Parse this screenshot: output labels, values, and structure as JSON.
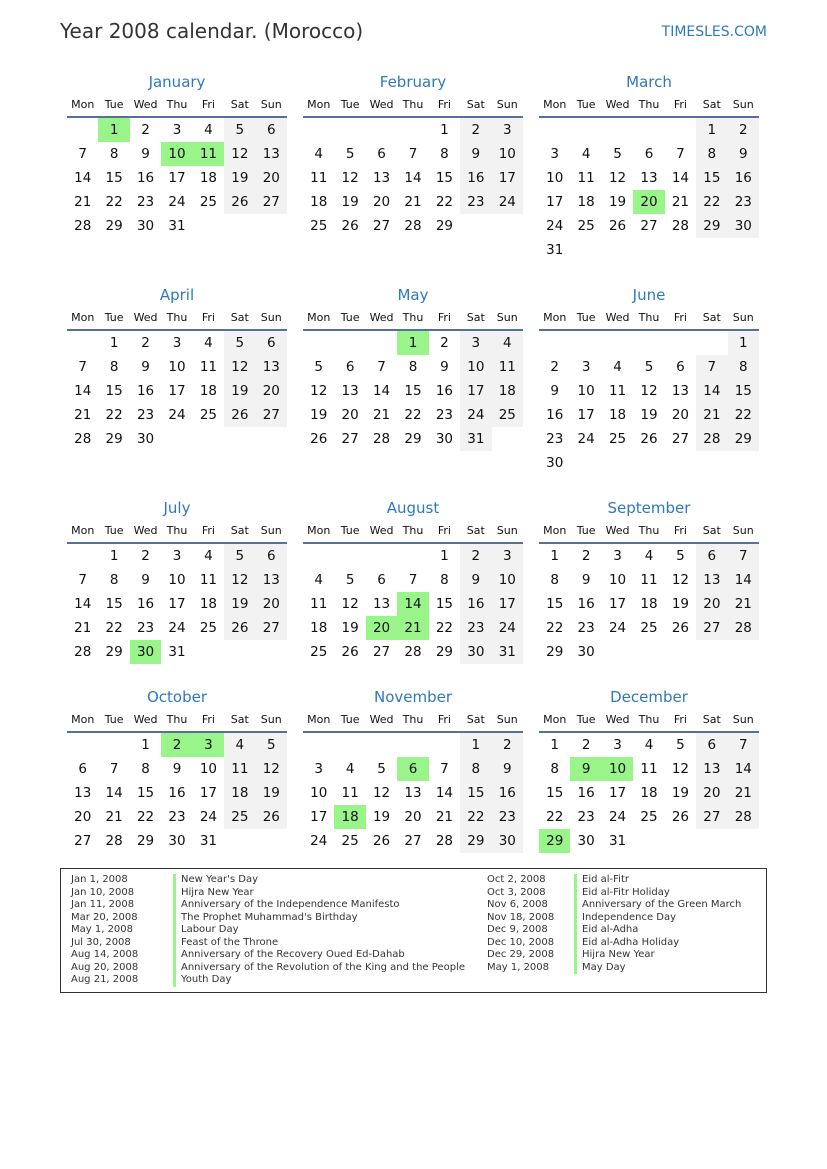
{
  "header": {
    "title": "Year 2008 calendar. (Morocco)",
    "brand": "TIMESLES.COM"
  },
  "weekdays": [
    "Mon",
    "Tue",
    "Wed",
    "Thu",
    "Fri",
    "Sat",
    "Sun"
  ],
  "colors": {
    "accent": "#2f78be",
    "holiday": "#99f58a",
    "weekend": "#f2f2f2"
  },
  "months": [
    {
      "name": "January",
      "first_weekday": "Tue",
      "days": 31,
      "holidays": [
        1,
        10,
        11
      ]
    },
    {
      "name": "February",
      "first_weekday": "Fri",
      "days": 29,
      "holidays": []
    },
    {
      "name": "March",
      "first_weekday": "Sat",
      "days": 31,
      "holidays": [
        20
      ]
    },
    {
      "name": "April",
      "first_weekday": "Tue",
      "days": 30,
      "holidays": []
    },
    {
      "name": "May",
      "first_weekday": "Thu",
      "days": 31,
      "holidays": [
        1
      ]
    },
    {
      "name": "June",
      "first_weekday": "Sun",
      "days": 30,
      "holidays": []
    },
    {
      "name": "July",
      "first_weekday": "Tue",
      "days": 31,
      "holidays": [
        30
      ]
    },
    {
      "name": "August",
      "first_weekday": "Fri",
      "days": 31,
      "holidays": [
        14,
        20,
        21
      ]
    },
    {
      "name": "September",
      "first_weekday": "Mon",
      "days": 30,
      "holidays": []
    },
    {
      "name": "October",
      "first_weekday": "Wed",
      "days": 31,
      "holidays": [
        2,
        3
      ]
    },
    {
      "name": "November",
      "first_weekday": "Sat",
      "days": 30,
      "holidays": [
        6,
        18
      ]
    },
    {
      "name": "December",
      "first_weekday": "Mon",
      "days": 31,
      "holidays": [
        9,
        10,
        29
      ]
    }
  ],
  "legend": {
    "left": [
      {
        "date": "Jan 1, 2008",
        "name": "New Year's Day"
      },
      {
        "date": "Jan 10, 2008",
        "name": "Hijra New Year"
      },
      {
        "date": "Jan 11, 2008",
        "name": "Anniversary of the Independence Manifesto"
      },
      {
        "date": "Mar 20, 2008",
        "name": "The Prophet Muhammad's Birthday"
      },
      {
        "date": "May 1, 2008",
        "name": "Labour Day"
      },
      {
        "date": "Jul 30, 2008",
        "name": "Feast of the Throne"
      },
      {
        "date": "Aug 14, 2008",
        "name": "Anniversary of the Recovery Oued Ed-Dahab"
      },
      {
        "date": "Aug 20, 2008",
        "name": "Anniversary of the Revolution of the King and the People"
      },
      {
        "date": "Aug 21, 2008",
        "name": "Youth Day"
      }
    ],
    "right": [
      {
        "date": "Oct 2, 2008",
        "name": "Eid al-Fitr"
      },
      {
        "date": "Oct 3, 2008",
        "name": "Eid al-Fitr Holiday"
      },
      {
        "date": "Nov 6, 2008",
        "name": "Anniversary of the Green March"
      },
      {
        "date": "Nov 18, 2008",
        "name": "Independence Day"
      },
      {
        "date": "Dec 9, 2008",
        "name": "Eid al-Adha"
      },
      {
        "date": "Dec 10, 2008",
        "name": "Eid al-Adha Holiday"
      },
      {
        "date": "Dec 29, 2008",
        "name": "Hijra New Year"
      },
      {
        "date": "May 1, 2008",
        "name": "May Day"
      }
    ]
  }
}
